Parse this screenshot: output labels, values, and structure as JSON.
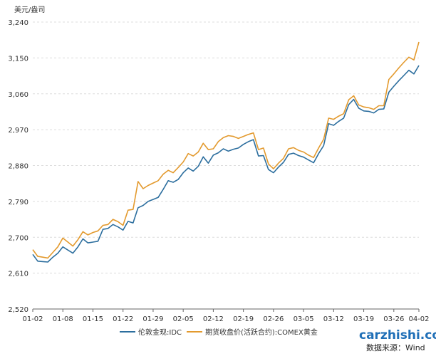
{
  "chart_data": {
    "type": "line",
    "unit_label": "美元/盎司",
    "ylim": [
      2520,
      3240
    ],
    "y_ticks": [
      "3,240",
      "3,150",
      "3,060",
      "2,970",
      "2,880",
      "2,790",
      "2,700",
      "2,610",
      "2,520"
    ],
    "y_tick_values": [
      3240,
      3150,
      3060,
      2970,
      2880,
      2790,
      2700,
      2610,
      2520
    ],
    "x_ticks": [
      "01-02",
      "01-08",
      "01-15",
      "01-22",
      "01-29",
      "02-05",
      "02-12",
      "02-19",
      "02-26",
      "03-05",
      "03-12",
      "03-19",
      "03-26",
      "04-02"
    ],
    "x_points": 78,
    "x_tick_positions": [
      0,
      6,
      12,
      18,
      24,
      30,
      36,
      42,
      48,
      54,
      60,
      66,
      72,
      77
    ],
    "grid": "horizontal",
    "legend_position": "bottom",
    "series": [
      {
        "name": "伦敦金现:IDC",
        "color": "#2c6e9e",
        "values": [
          2657,
          2640,
          2639,
          2638,
          2650,
          2660,
          2676,
          2668,
          2660,
          2676,
          2696,
          2686,
          2688,
          2690,
          2720,
          2722,
          2732,
          2726,
          2718,
          2740,
          2736,
          2774,
          2780,
          2790,
          2795,
          2800,
          2820,
          2842,
          2838,
          2845,
          2862,
          2874,
          2866,
          2878,
          2902,
          2886,
          2906,
          2912,
          2922,
          2916,
          2921,
          2924,
          2933,
          2940,
          2945,
          2904,
          2905,
          2870,
          2862,
          2876,
          2888,
          2908,
          2911,
          2905,
          2901,
          2894,
          2887,
          2910,
          2930,
          2985,
          2981,
          2991,
          2999,
          3033,
          3046,
          3024,
          3017,
          3016,
          3012,
          3021,
          3022,
          3064,
          3079,
          3093,
          3106,
          3119,
          3110,
          3131
        ]
      },
      {
        "name": "期货收盘价(活跃合约):COMEX黄金",
        "color": "#e39a2e",
        "values": [
          2669,
          2652,
          2650,
          2648,
          2662,
          2676,
          2698,
          2688,
          2678,
          2694,
          2714,
          2706,
          2712,
          2716,
          2730,
          2732,
          2745,
          2739,
          2730,
          2768,
          2770,
          2840,
          2822,
          2830,
          2836,
          2842,
          2858,
          2868,
          2862,
          2875,
          2889,
          2910,
          2904,
          2914,
          2936,
          2920,
          2922,
          2940,
          2950,
          2955,
          2953,
          2948,
          2953,
          2958,
          2962,
          2920,
          2924,
          2884,
          2872,
          2886,
          2898,
          2922,
          2925,
          2918,
          2914,
          2906,
          2900,
          2924,
          2946,
          2999,
          2996,
          3004,
          3010,
          3045,
          3055,
          3032,
          3027,
          3025,
          3021,
          3030,
          3030,
          3096,
          3110,
          3125,
          3139,
          3152,
          3145,
          3190
        ]
      }
    ]
  },
  "watermark": {
    "site": "carzhishi.com",
    "source": "数据来源：Wind"
  }
}
